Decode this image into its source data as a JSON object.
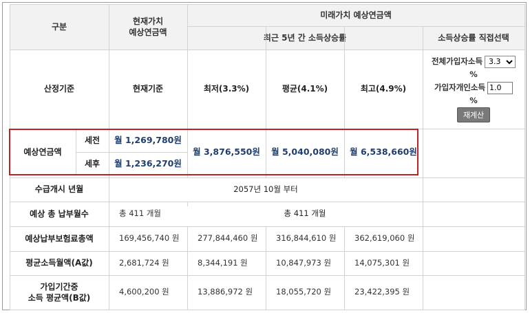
{
  "header": {
    "category": "구분",
    "present_value": "현재가치\n예상연금액",
    "future_value": "미래가치 예상연금액",
    "recent_income_rate": "최근 5년 간 소득상승률",
    "direct_select": "소득상승률 직접선택"
  },
  "basis_row": {
    "label": "산정기준",
    "current": "현재기준",
    "lowest": "최저(3.3%)",
    "average": "평균(4.1%)",
    "highest": "최고(4.9%)"
  },
  "controls": {
    "total_income_label": "전체가입자소득",
    "total_income_selected": "3.3",
    "total_income_unit": "%",
    "personal_income_label": "가입자개인소득",
    "personal_income_value": "1.0",
    "personal_income_unit": "%",
    "recalc_button": "재계산"
  },
  "expected_pension": {
    "label": "예상연금액",
    "pretax_label": "세전",
    "aftertax_label": "세후",
    "current_pretax": "월 1,269,780원",
    "current_aftertax": "월 1,236,270원",
    "lowest": "월 3,876,550원",
    "average": "월 5,040,080원",
    "highest": "월 6,538,660원"
  },
  "start_date": {
    "label": "수급개시 년월",
    "value": "2057년 10월 부터"
  },
  "payment_months": {
    "label": "예상 총 납부월수",
    "current": "총 411 개월",
    "future": "총 411 개월"
  },
  "total_premium": {
    "label": "예상납부보험료총액",
    "current": "169,456,740 원",
    "lowest": "277,844,460 원",
    "average": "316,844,610 원",
    "highest": "362,619,060 원"
  },
  "avg_income_a": {
    "label": "평균소득월액(A값)",
    "current": "2,681,724 원",
    "lowest": "8,344,191 원",
    "average": "10,847,973 원",
    "highest": "14,075,301 원"
  },
  "avg_income_b": {
    "label": "가입기간중\n소득 평균액(B값)",
    "current": "4,600,200 원",
    "lowest": "13,886,972 원",
    "average": "18,055,720 원",
    "highest": "23,422,395 원"
  },
  "total_income_options": [
    "3.3"
  ]
}
